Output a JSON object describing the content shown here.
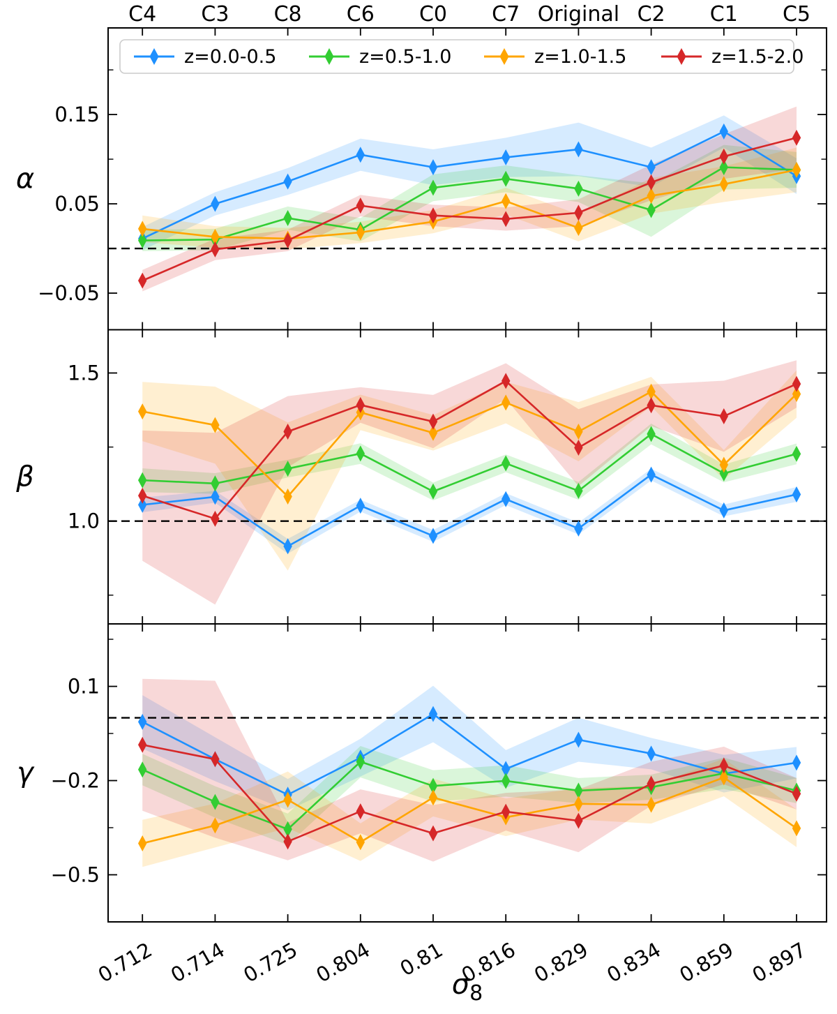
{
  "figure": {
    "xlabel_base": "σ",
    "xlabel_sub": "8",
    "background": "#ffffff"
  },
  "legend": {
    "entries": [
      {
        "label": "z=0.0-0.5",
        "color": "#1E90FF"
      },
      {
        "label": "z=0.5-1.0",
        "color": "#32CD32"
      },
      {
        "label": "z=1.0-1.5",
        "color": "#FFA500"
      },
      {
        "label": "z=1.5-2.0",
        "color": "#D62728"
      }
    ]
  },
  "chart_data": [
    {
      "type": "line",
      "id": "alpha",
      "ylabel": "α",
      "ylim": [
        -0.091,
        0.247
      ],
      "yticks": [
        {
          "v": 0.15,
          "label": "0.15"
        },
        {
          "v": 0.05,
          "label": "0.05"
        },
        {
          "v": -0.05,
          "label": "−0.05"
        }
      ],
      "minor_yticks": [
        0.2,
        0.1,
        0.0
      ],
      "dashed_reference": 0.0,
      "categories": [
        "C4",
        "C3",
        "C8",
        "C6",
        "C0",
        "C7",
        "Original",
        "C2",
        "C1",
        "C5"
      ],
      "series": [
        {
          "name": "z=0.0-0.5",
          "color": "#1E90FF",
          "values": [
            0.011,
            0.05,
            0.075,
            0.105,
            0.091,
            0.102,
            0.111,
            0.091,
            0.131,
            0.081
          ],
          "err": [
            0.013,
            0.013,
            0.015,
            0.018,
            0.02,
            0.022,
            0.03,
            0.022,
            0.018,
            0.02
          ]
        },
        {
          "name": "z=0.5-1.0",
          "color": "#32CD32",
          "values": [
            0.009,
            0.01,
            0.034,
            0.021,
            0.068,
            0.078,
            0.067,
            0.043,
            0.091,
            0.088
          ],
          "err": [
            0.012,
            0.012,
            0.013,
            0.013,
            0.015,
            0.015,
            0.015,
            0.03,
            0.025,
            0.02
          ]
        },
        {
          "name": "z=1.0-1.5",
          "color": "#FFA500",
          "values": [
            0.022,
            0.013,
            0.011,
            0.018,
            0.03,
            0.053,
            0.023,
            0.059,
            0.072,
            0.088
          ],
          "err": [
            0.015,
            0.012,
            0.012,
            0.012,
            0.013,
            0.015,
            0.015,
            0.02,
            0.02,
            0.025
          ]
        },
        {
          "name": "z=1.5-2.0",
          "color": "#D62728",
          "values": [
            -0.036,
            -0.001,
            0.009,
            0.048,
            0.037,
            0.033,
            0.04,
            0.074,
            0.103,
            0.124
          ],
          "err": [
            0.012,
            0.012,
            0.012,
            0.012,
            0.012,
            0.013,
            0.015,
            0.02,
            0.025,
            0.035
          ]
        }
      ]
    },
    {
      "type": "line",
      "id": "beta",
      "ylabel": "β",
      "ylim": [
        0.653,
        1.646
      ],
      "yticks": [
        {
          "v": 1.5,
          "label": "1.5"
        },
        {
          "v": 1.0,
          "label": "1.0"
        }
      ],
      "minor_yticks": [
        1.25,
        0.75
      ],
      "dashed_reference": 1.0,
      "categories": [
        "C4",
        "C3",
        "C8",
        "C6",
        "C0",
        "C7",
        "Original",
        "C2",
        "C1",
        "C5"
      ],
      "series": [
        {
          "name": "z=0.0-0.5",
          "color": "#1E90FF",
          "values": [
            1.055,
            1.082,
            0.915,
            1.052,
            0.95,
            1.074,
            0.975,
            1.157,
            1.036,
            1.09
          ],
          "err": [
            0.025,
            0.02,
            0.025,
            0.02,
            0.02,
            0.02,
            0.02,
            0.02,
            0.02,
            0.025
          ]
        },
        {
          "name": "z=0.5-1.0",
          "color": "#32CD32",
          "values": [
            1.138,
            1.127,
            1.177,
            1.228,
            1.1,
            1.195,
            1.102,
            1.294,
            1.161,
            1.227
          ],
          "err": [
            0.04,
            0.035,
            0.03,
            0.035,
            0.03,
            0.03,
            0.03,
            0.035,
            0.03,
            0.035
          ]
        },
        {
          "name": "z=1.0-1.5",
          "color": "#FFA500",
          "values": [
            1.37,
            1.324,
            1.083,
            1.367,
            1.298,
            1.4,
            1.302,
            1.437,
            1.19,
            1.429
          ],
          "err": [
            0.1,
            0.13,
            0.25,
            0.06,
            0.06,
            0.07,
            0.1,
            0.05,
            0.05,
            0.08
          ]
        },
        {
          "name": "z=1.5-2.0",
          "color": "#D62728",
          "values": [
            1.086,
            1.008,
            1.302,
            1.392,
            1.336,
            1.473,
            1.248,
            1.391,
            1.354,
            1.463
          ],
          "err": [
            0.22,
            0.29,
            0.12,
            0.06,
            0.09,
            0.06,
            0.13,
            0.07,
            0.12,
            0.08
          ]
        }
      ]
    },
    {
      "type": "line",
      "id": "gamma",
      "ylabel": "γ",
      "ylim": [
        -0.65,
        0.299
      ],
      "yticks": [
        {
          "v": 0.1,
          "label": "0.1"
        },
        {
          "v": -0.2,
          "label": "−0.2"
        },
        {
          "v": -0.5,
          "label": "−0.5"
        }
      ],
      "minor_yticks": [
        0.25,
        -0.05,
        -0.35
      ],
      "dashed_reference": 0.0,
      "categories": [
        "C4",
        "C3",
        "C8",
        "C6",
        "C0",
        "C7",
        "Original",
        "C2",
        "C1",
        "C5"
      ],
      "series": [
        {
          "name": "z=0.0-0.5",
          "color": "#1E90FF",
          "values": [
            -0.013,
            -0.132,
            -0.245,
            -0.127,
            0.012,
            -0.163,
            -0.07,
            -0.114,
            -0.178,
            -0.143
          ],
          "err": [
            0.085,
            0.07,
            0.05,
            0.06,
            0.09,
            0.06,
            0.07,
            0.05,
            0.06,
            0.05
          ]
        },
        {
          "name": "z=0.5-1.0",
          "color": "#32CD32",
          "values": [
            -0.165,
            -0.268,
            -0.355,
            -0.14,
            -0.217,
            -0.201,
            -0.232,
            -0.221,
            -0.177,
            -0.232
          ],
          "err": [
            0.05,
            0.05,
            0.05,
            0.05,
            0.05,
            0.05,
            0.04,
            0.04,
            0.05,
            0.04
          ]
        },
        {
          "name": "z=1.0-1.5",
          "color": "#FFA500",
          "values": [
            -0.4,
            -0.343,
            -0.261,
            -0.396,
            -0.254,
            -0.317,
            -0.274,
            -0.277,
            -0.19,
            -0.352
          ],
          "err": [
            0.075,
            0.07,
            0.09,
            0.06,
            0.06,
            0.06,
            0.05,
            0.06,
            0.06,
            0.06
          ]
        },
        {
          "name": "z=1.5-2.0",
          "color": "#D62728",
          "values": [
            -0.086,
            -0.132,
            -0.394,
            -0.298,
            -0.368,
            -0.299,
            -0.328,
            -0.21,
            -0.152,
            -0.242
          ],
          "err": [
            0.21,
            0.25,
            0.06,
            0.07,
            0.09,
            0.06,
            0.1,
            0.07,
            0.06,
            0.05
          ]
        }
      ]
    }
  ],
  "x_axis": {
    "tick_labels": [
      "0.712",
      "0.714",
      "0.725",
      "0.804",
      "0.81",
      "0.816",
      "0.829",
      "0.834",
      "0.859",
      "0.897"
    ],
    "top_labels": [
      "C4",
      "C3",
      "C8",
      "C6",
      "C0",
      "C7",
      "Original",
      "C2",
      "C1",
      "C5"
    ]
  }
}
